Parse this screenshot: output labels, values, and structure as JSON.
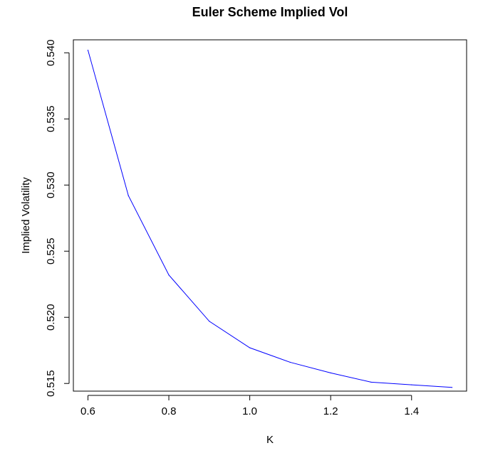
{
  "chart_data": {
    "type": "line",
    "title": "Euler Scheme Implied Vol",
    "xlabel": "K",
    "ylabel": "Implied Volatility",
    "x": [
      0.6,
      0.7,
      0.8,
      0.9,
      1.0,
      1.1,
      1.2,
      1.3,
      1.4,
      1.5
    ],
    "series": [
      {
        "values": [
          0.5402,
          0.5292,
          0.5232,
          0.5197,
          0.5177,
          0.5166,
          0.5158,
          0.5151,
          0.5149,
          0.5147
        ],
        "color": "#0000ff"
      }
    ],
    "xlim": [
      0.564,
      1.536
    ],
    "ylim": [
      0.51442,
      0.54098
    ],
    "xticks": [
      "0.6",
      "0.8",
      "1.0",
      "1.2",
      "1.4"
    ],
    "yticks": [
      "0.515",
      "0.520",
      "0.525",
      "0.530",
      "0.535",
      "0.540"
    ],
    "grid": false
  }
}
